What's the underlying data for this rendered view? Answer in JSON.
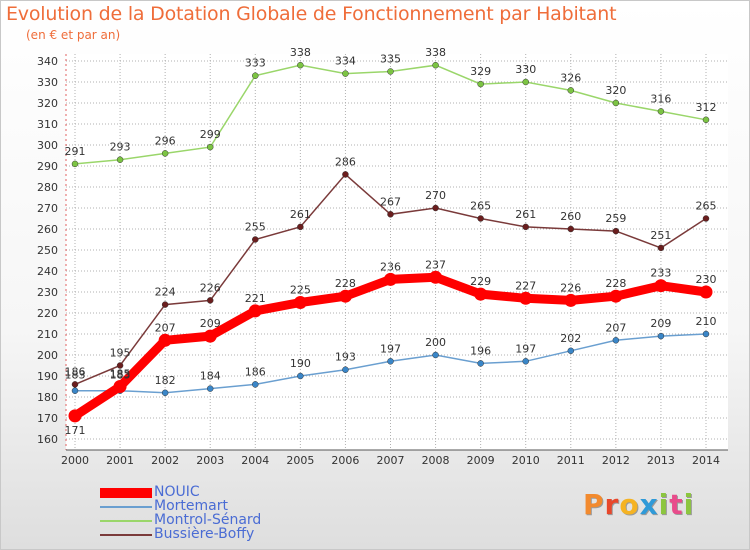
{
  "title": "Evolution de la Dotation Globale de Fonctionnement par Habitant",
  "subtitle": "(en € et par an)",
  "brand": {
    "letters": [
      "P",
      "r",
      "o",
      "x",
      "i",
      "t",
      "i"
    ],
    "colors": [
      "#f28a2e",
      "#e8472b",
      "#f5b323",
      "#2f9ad8",
      "#8cc63f",
      "#e84c8b",
      "#8cc63f"
    ]
  },
  "chart_data": {
    "type": "line",
    "title": "Evolution de la Dotation Globale de Fonctionnement par Habitant",
    "subtitle": "(en € et par an)",
    "xlabel": "",
    "ylabel": "",
    "x": [
      "2000",
      "2001",
      "2002",
      "2003",
      "2004",
      "2005",
      "2006",
      "2007",
      "2008",
      "2009",
      "2010",
      "2011",
      "2012",
      "2013",
      "2014"
    ],
    "ylim": [
      160,
      340
    ],
    "yticks": [
      160,
      170,
      180,
      190,
      200,
      210,
      220,
      230,
      240,
      250,
      260,
      270,
      280,
      290,
      300,
      310,
      320,
      330,
      340
    ],
    "grid": true,
    "legend_position": "bottom-left",
    "series": [
      {
        "name": "NOUIC",
        "color": "#ff0000",
        "emphasis": true,
        "values": [
          171,
          185,
          207,
          209,
          221,
          225,
          228,
          236,
          237,
          229,
          227,
          226,
          228,
          233,
          230
        ],
        "labels": [
          "171",
          "185",
          "207",
          "209",
          "221",
          "225",
          "228",
          "236",
          "237",
          "229",
          "227",
          "226",
          "228",
          "233",
          "230"
        ]
      },
      {
        "name": "Mortemart",
        "color": "#6a9fd0",
        "marker": "#3a86c8",
        "values": [
          183,
          183,
          182,
          184,
          186,
          190,
          193,
          197,
          200,
          196,
          197,
          202,
          207,
          209,
          210
        ],
        "labels": [
          "183",
          "183",
          "182",
          "184",
          "186",
          "190",
          "193",
          "197",
          "200",
          "196",
          "197",
          "202",
          "207",
          "209",
          "210"
        ]
      },
      {
        "name": "Montrol-Sénard",
        "color": "#9ad66a",
        "marker": "#7cc443",
        "values": [
          291,
          293,
          296,
          299,
          333,
          338,
          334,
          335,
          338,
          329,
          330,
          326,
          320,
          316,
          312
        ],
        "labels": [
          "291",
          "293",
          "296",
          "299",
          "333",
          "338",
          "334",
          "335",
          "338",
          "329",
          "330",
          "326",
          "320",
          "316",
          "312"
        ]
      },
      {
        "name": "Bussière-Boffy",
        "color": "#7a3a3a",
        "marker": "#6b1e1e",
        "values": [
          186,
          195,
          224,
          226,
          255,
          261,
          286,
          267,
          270,
          265,
          261,
          260,
          259,
          251,
          265
        ],
        "labels": [
          "186",
          "195",
          "224",
          "226",
          "255",
          "261",
          "286",
          "267",
          "270",
          "265",
          "261",
          "260",
          "259",
          "251",
          "265"
        ]
      }
    ]
  }
}
